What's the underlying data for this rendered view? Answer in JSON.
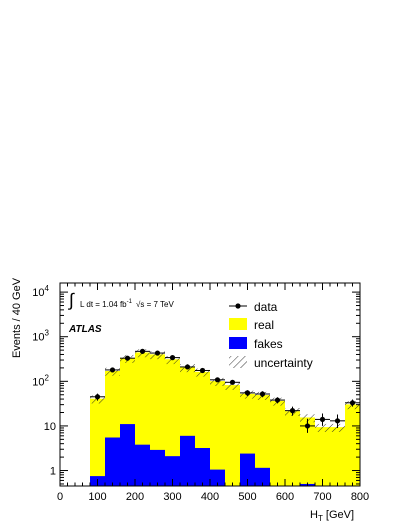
{
  "chart_data": {
    "type": "bar",
    "xlabel": "H_T [GeV]",
    "ylabel": "Events / 40 GeV",
    "xlim": [
      0,
      800
    ],
    "ylim": [
      0.45,
      16000
    ],
    "yscale": "log",
    "bin_width": 40,
    "x_ticks": [
      0,
      100,
      200,
      300,
      400,
      500,
      600,
      700,
      800
    ],
    "y_ticks": [
      {
        "value": 1,
        "base": "1",
        "exp": ""
      },
      {
        "value": 10,
        "base": "10",
        "exp": ""
      },
      {
        "value": 100,
        "base": "10",
        "exp": "2"
      },
      {
        "value": 1000,
        "base": "10",
        "exp": "3"
      },
      {
        "value": 10000,
        "base": "10",
        "exp": "4"
      }
    ],
    "bins_low_edge": [
      80,
      120,
      160,
      200,
      240,
      280,
      320,
      360,
      400,
      440,
      480,
      520,
      560,
      600,
      640,
      680,
      720,
      760
    ],
    "series": [
      {
        "name": "real",
        "color": "#ffff00",
        "values": [
          40,
          165,
          320,
          440,
          400,
          310,
          200,
          160,
          100,
          82,
          50,
          48,
          36,
          21,
          15,
          9,
          9,
          30
        ]
      },
      {
        "name": "fakes",
        "color": "#0000ff",
        "values": [
          0.75,
          5.5,
          11,
          3.8,
          2.9,
          2.1,
          6.0,
          3.2,
          1.05,
          0.4,
          2.4,
          1.15,
          0.4,
          0.4,
          0.5,
          0.4,
          0.4,
          0.4
        ]
      },
      {
        "name": "data",
        "color": "#000000",
        "values": [
          45,
          180,
          330,
          470,
          430,
          340,
          210,
          175,
          108,
          95,
          55,
          52,
          38,
          22,
          10,
          14,
          13,
          33
        ],
        "y_err_low": [
          8,
          15,
          20,
          25,
          22,
          20,
          15,
          14,
          10,
          10,
          8,
          8,
          6,
          5,
          3,
          4,
          4,
          6
        ],
        "y_err_high": [
          8,
          15,
          20,
          25,
          22,
          20,
          15,
          14,
          10,
          10,
          8,
          8,
          6,
          5,
          4.5,
          5,
          5,
          6
        ]
      }
    ],
    "uncertainty_low_factor": 0.78,
    "uncertainty_high_factor": 1.18,
    "legend": {
      "placement": "top-right",
      "entries": [
        "data",
        "real",
        "fakes",
        "uncertainty"
      ]
    },
    "annotations": {
      "lumi_integral": "∫",
      "lumi_text": "L dt = 1.04 fb",
      "lumi_exp": "-1",
      "sqrt_s_text": "√s = 7 TeV",
      "experiment": "ATLAS"
    }
  }
}
